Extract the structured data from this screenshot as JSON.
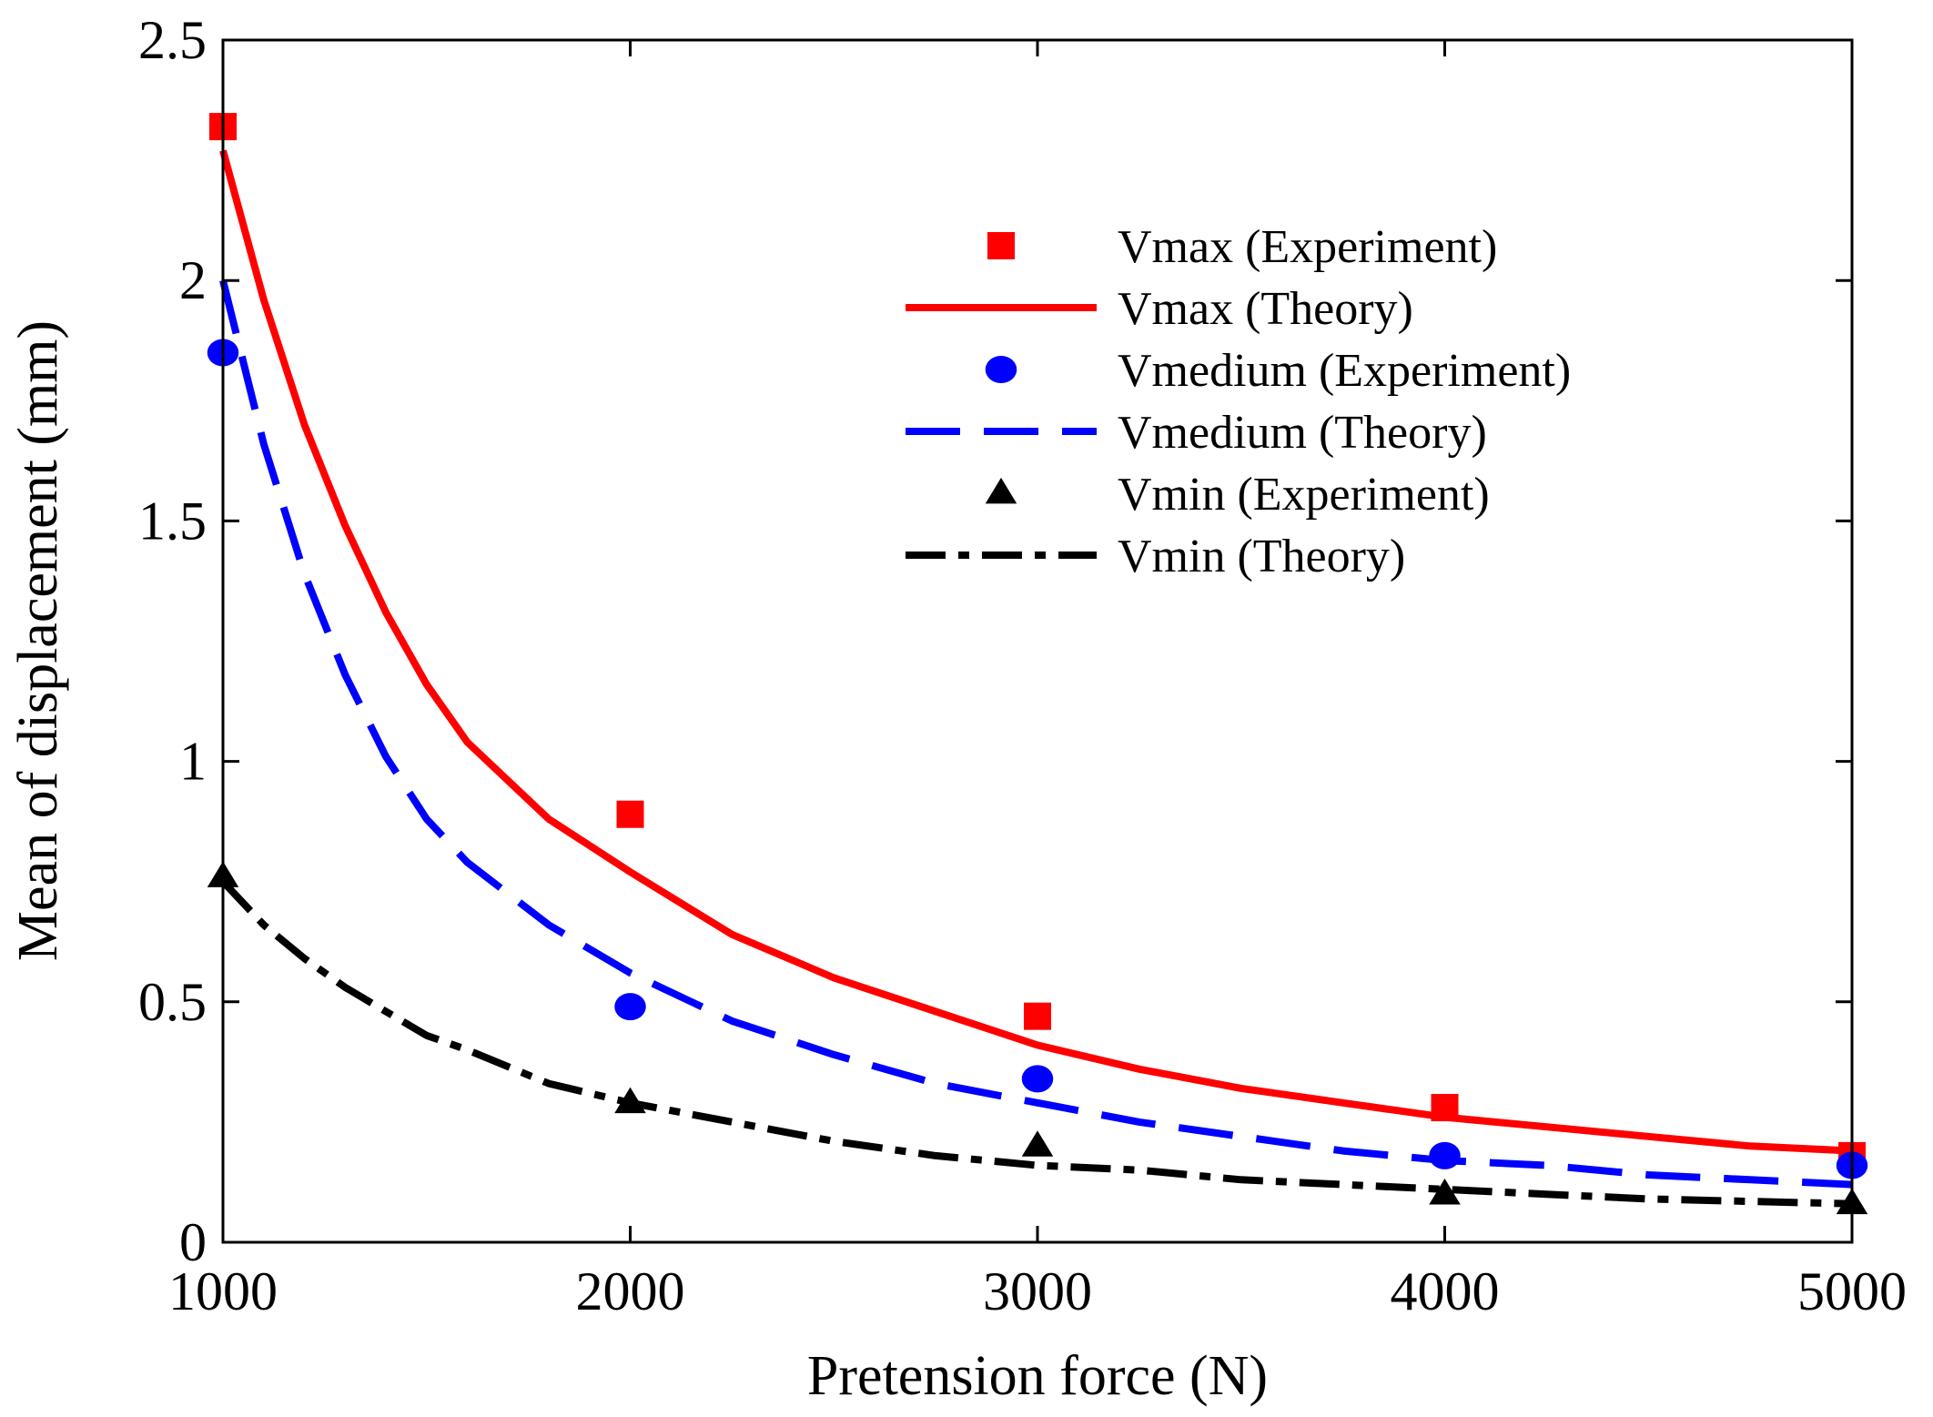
{
  "chart_data": {
    "type": "line",
    "xlabel": "Pretension force (N)",
    "ylabel": "Mean of displacement (mm)",
    "xlim": [
      1000,
      5000
    ],
    "ylim": [
      0,
      2.5
    ],
    "x_ticks": [
      "1000",
      "2000",
      "3000",
      "4000",
      "5000"
    ],
    "y_ticks": [
      "0",
      "0.5",
      "1",
      "1.5",
      "2",
      "2.5"
    ],
    "x_tick_values": [
      1000,
      2000,
      3000,
      4000,
      5000
    ],
    "y_tick_values": [
      0,
      0.5,
      1,
      1.5,
      2,
      2.5
    ],
    "grid": false,
    "legend_position": "top-right",
    "series": [
      {
        "name": "Vmax (Experiment)",
        "kind": "scatter",
        "marker": "square",
        "color": "#ff0000",
        "x": [
          1000,
          2000,
          3000,
          4000,
          5000
        ],
        "y": [
          2.32,
          0.89,
          0.47,
          0.28,
          0.18
        ]
      },
      {
        "name": "Vmax (Theory)",
        "kind": "line",
        "dash": "solid",
        "color": "#ff0000",
        "x": [
          1000,
          1100,
          1200,
          1300,
          1400,
          1500,
          1600,
          1800,
          2000,
          2250,
          2500,
          2750,
          3000,
          3250,
          3500,
          3750,
          4000,
          4250,
          4500,
          4750,
          5000
        ],
        "y": [
          2.27,
          1.96,
          1.7,
          1.49,
          1.31,
          1.16,
          1.04,
          0.88,
          0.77,
          0.64,
          0.55,
          0.48,
          0.41,
          0.36,
          0.32,
          0.29,
          0.26,
          0.24,
          0.22,
          0.2,
          0.19
        ]
      },
      {
        "name": "Vmedium (Experiment)",
        "kind": "scatter",
        "marker": "circle",
        "color": "#0000ff",
        "x": [
          1000,
          2000,
          3000,
          4000,
          5000
        ],
        "y": [
          1.85,
          0.49,
          0.34,
          0.18,
          0.16
        ]
      },
      {
        "name": "Vmedium (Theory)",
        "kind": "line",
        "dash": "dashed",
        "color": "#0000ff",
        "x": [
          1000,
          1100,
          1200,
          1300,
          1400,
          1500,
          1600,
          1800,
          2000,
          2250,
          2500,
          2750,
          3000,
          3250,
          3500,
          3750,
          4000,
          4250,
          4500,
          4750,
          5000
        ],
        "y": [
          2.0,
          1.66,
          1.39,
          1.18,
          1.01,
          0.88,
          0.79,
          0.66,
          0.56,
          0.46,
          0.39,
          0.33,
          0.29,
          0.25,
          0.22,
          0.19,
          0.17,
          0.16,
          0.14,
          0.13,
          0.12
        ]
      },
      {
        "name": "Vmin (Experiment)",
        "kind": "scatter",
        "marker": "triangle",
        "color": "#000000",
        "x": [
          1000,
          2000,
          3000,
          4000,
          5000
        ],
        "y": [
          0.76,
          0.29,
          0.2,
          0.1,
          0.08
        ]
      },
      {
        "name": "Vmin (Theory)",
        "kind": "line",
        "dash": "dashdot",
        "color": "#000000",
        "x": [
          1000,
          1100,
          1200,
          1300,
          1400,
          1500,
          1600,
          1800,
          2000,
          2250,
          2500,
          2750,
          3000,
          3250,
          3500,
          3750,
          4000,
          4250,
          4500,
          4750,
          5000
        ],
        "y": [
          0.75,
          0.66,
          0.59,
          0.53,
          0.48,
          0.43,
          0.4,
          0.33,
          0.29,
          0.25,
          0.21,
          0.18,
          0.16,
          0.15,
          0.13,
          0.12,
          0.11,
          0.1,
          0.09,
          0.085,
          0.08
        ]
      }
    ]
  }
}
